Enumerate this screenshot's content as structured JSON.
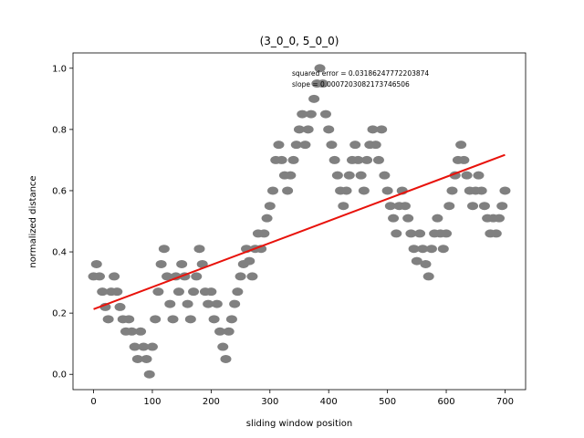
{
  "chart_data": {
    "type": "scatter",
    "title": "(3_0_0, 5_0_0)",
    "xlabel": "sliding window position",
    "ylabel": "normalized distance",
    "xlim": [
      -35,
      735
    ],
    "ylim": [
      -0.05,
      1.05
    ],
    "xticks": [
      0,
      100,
      200,
      300,
      400,
      500,
      600,
      700
    ],
    "yticks": [
      0.0,
      0.2,
      0.4,
      0.6,
      0.8,
      1.0
    ],
    "xtick_labels": [
      "0",
      "100",
      "200",
      "300",
      "400",
      "500",
      "600",
      "700"
    ],
    "ytick_labels": [
      "0.0",
      "0.2",
      "0.4",
      "0.6",
      "0.8",
      "1.0"
    ],
    "grid": false,
    "annotations": [
      "squared error = 0.03186247772203874",
      "slope = 0.0007203082173746506"
    ],
    "series": [
      {
        "kind": "points",
        "color": "#808080",
        "x": [
          0,
          5,
          10,
          15,
          20,
          25,
          30,
          35,
          40,
          45,
          50,
          55,
          60,
          65,
          70,
          75,
          80,
          85,
          90,
          95,
          100,
          105,
          110,
          115,
          120,
          125,
          130,
          135,
          140,
          145,
          150,
          155,
          160,
          165,
          170,
          175,
          180,
          185,
          190,
          195,
          200,
          205,
          210,
          215,
          220,
          225,
          230,
          235,
          240,
          245,
          250,
          255,
          260,
          265,
          270,
          275,
          280,
          285,
          290,
          295,
          300,
          305,
          310,
          315,
          320,
          325,
          330,
          335,
          340,
          345,
          350,
          355,
          360,
          365,
          370,
          375,
          380,
          385,
          390,
          395,
          400,
          405,
          410,
          415,
          420,
          425,
          430,
          435,
          440,
          445,
          450,
          455,
          460,
          465,
          470,
          475,
          480,
          485,
          490,
          495,
          500,
          505,
          510,
          515,
          520,
          525,
          530,
          535,
          540,
          545,
          550,
          555,
          560,
          565,
          570,
          575,
          580,
          585,
          590,
          595,
          600,
          605,
          610,
          615,
          620,
          625,
          630,
          635,
          640,
          645,
          650,
          655,
          660,
          665,
          670,
          675,
          680,
          685,
          690,
          695,
          700
        ],
        "y": [
          0.32,
          0.36,
          0.32,
          0.27,
          0.22,
          0.18,
          0.27,
          0.32,
          0.27,
          0.22,
          0.18,
          0.14,
          0.18,
          0.14,
          0.09,
          0.05,
          0.14,
          0.09,
          0.05,
          0.0,
          0.09,
          0.18,
          0.27,
          0.36,
          0.41,
          0.32,
          0.23,
          0.18,
          0.32,
          0.27,
          0.36,
          0.32,
          0.23,
          0.18,
          0.27,
          0.32,
          0.41,
          0.36,
          0.27,
          0.23,
          0.27,
          0.18,
          0.23,
          0.14,
          0.09,
          0.05,
          0.14,
          0.18,
          0.23,
          0.27,
          0.32,
          0.36,
          0.41,
          0.37,
          0.32,
          0.41,
          0.46,
          0.41,
          0.46,
          0.51,
          0.55,
          0.6,
          0.7,
          0.75,
          0.7,
          0.65,
          0.6,
          0.65,
          0.7,
          0.75,
          0.8,
          0.85,
          0.75,
          0.8,
          0.85,
          0.9,
          0.95,
          1.0,
          0.95,
          0.85,
          0.8,
          0.75,
          0.7,
          0.65,
          0.6,
          0.55,
          0.6,
          0.65,
          0.7,
          0.75,
          0.7,
          0.65,
          0.6,
          0.7,
          0.75,
          0.8,
          0.75,
          0.7,
          0.8,
          0.65,
          0.6,
          0.55,
          0.51,
          0.46,
          0.55,
          0.6,
          0.55,
          0.51,
          0.46,
          0.41,
          0.37,
          0.46,
          0.41,
          0.36,
          0.32,
          0.41,
          0.46,
          0.51,
          0.46,
          0.41,
          0.46,
          0.55,
          0.6,
          0.65,
          0.7,
          0.75,
          0.7,
          0.65,
          0.6,
          0.55,
          0.6,
          0.65,
          0.6,
          0.55,
          0.51,
          0.46,
          0.51,
          0.46,
          0.51,
          0.55,
          0.6
        ]
      },
      {
        "kind": "fit-line",
        "color": "#e8120b",
        "x": [
          0,
          700
        ],
        "y": [
          0.213,
          0.717
        ]
      }
    ]
  }
}
